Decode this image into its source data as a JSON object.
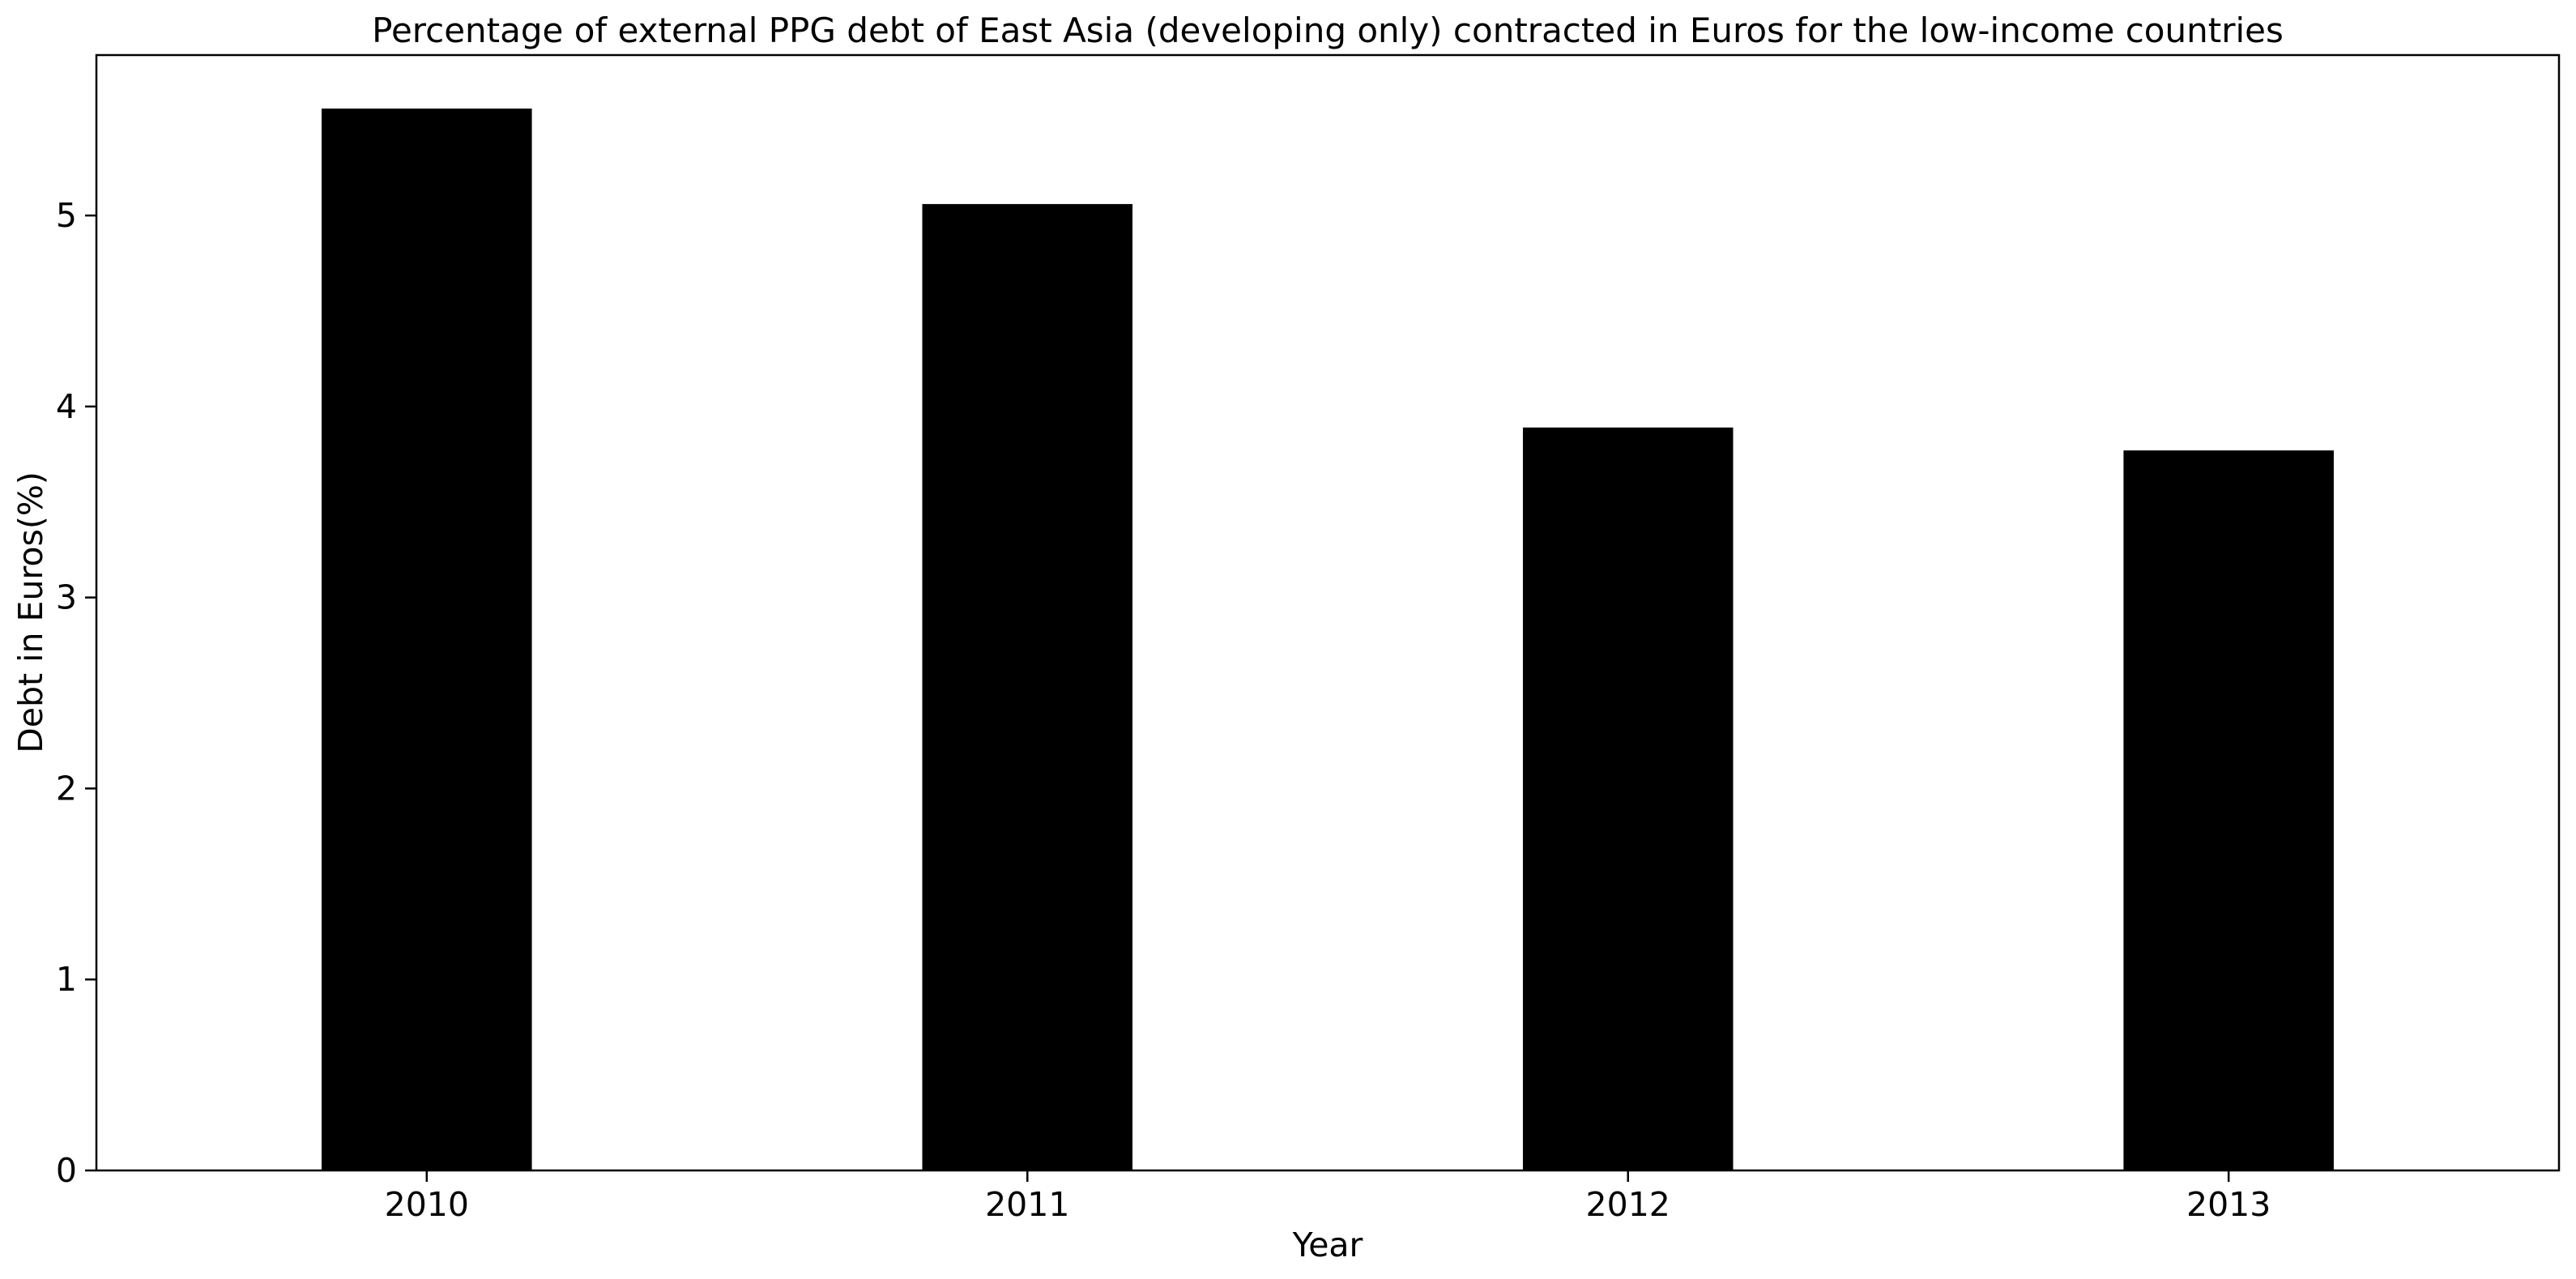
{
  "chart_data": {
    "type": "bar",
    "title": "Percentage of external PPG debt of East Asia (developing only) contracted in Euros for the low-income countries",
    "xlabel": "Year",
    "ylabel": "Debt in Euros(%)",
    "categories": [
      "2010",
      "2011",
      "2012",
      "2013"
    ],
    "values": [
      5.56,
      5.06,
      3.89,
      3.77
    ],
    "ylim": [
      0,
      5.84
    ],
    "yticks": [
      0,
      1,
      2,
      3,
      4,
      5
    ],
    "grid": false,
    "legend": "none",
    "bar_color": "#000000"
  }
}
